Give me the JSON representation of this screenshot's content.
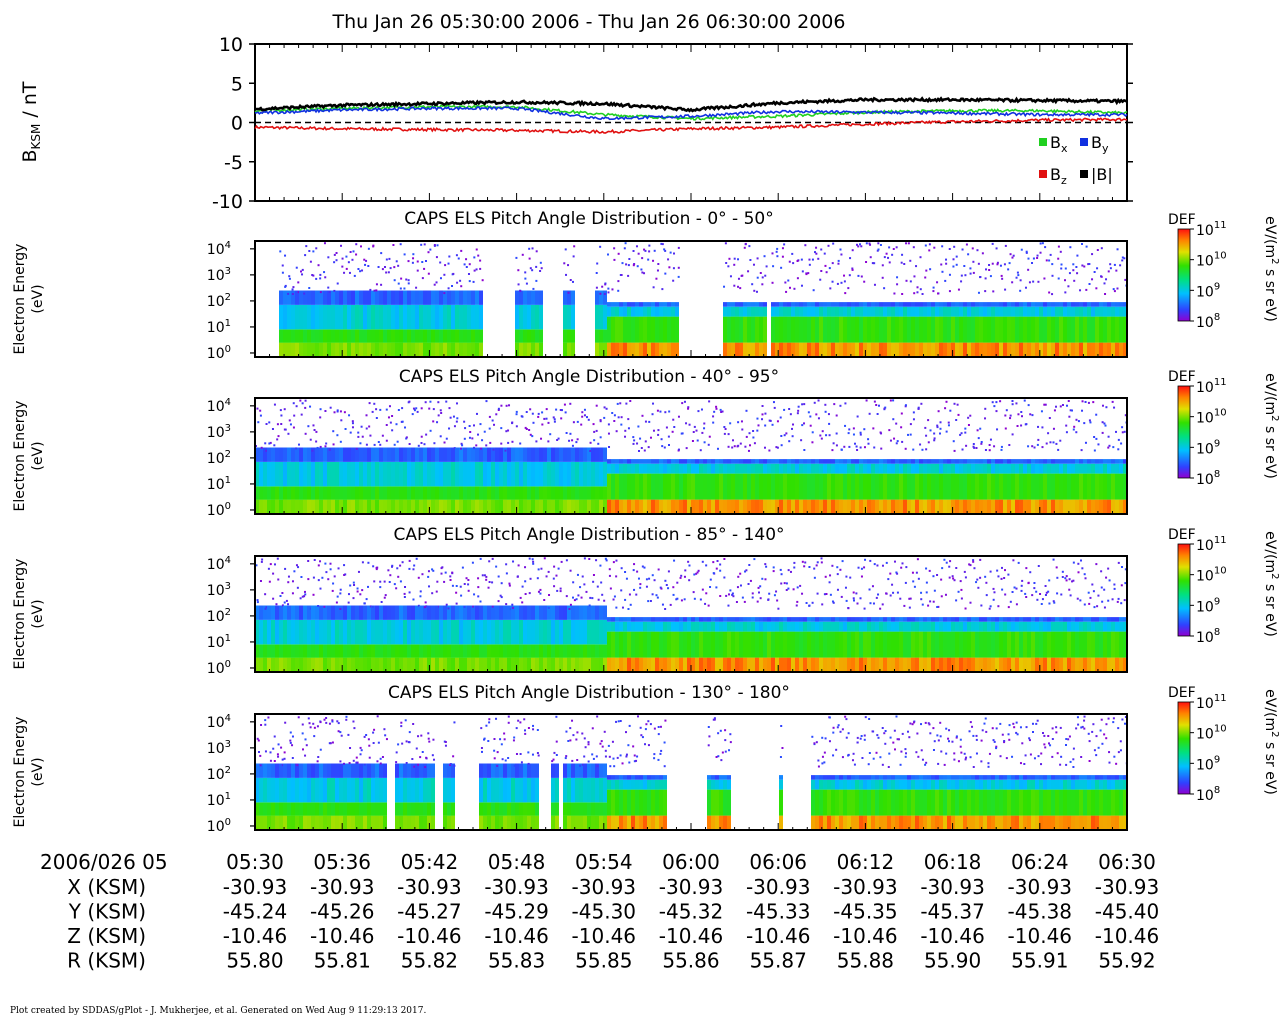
{
  "title": "Thu Jan 26 05:30:00 2006 - Thu Jan 26 06:30:00 2006",
  "footer": "Plot created by SDDAS/gPlot - J. Mukherjee, et al.  Generated on Wed Aug 9 11:29:13 2017.",
  "mag_panel": {
    "ylabel_main": "B",
    "ylabel_sub": "KSM",
    "ylabel_unit": " / nT",
    "yticks": [
      "10",
      "5",
      "0",
      "-5",
      "-10"
    ]
  },
  "colorbar": {
    "label": "DEF",
    "unit_main": "eV/(m",
    "unit_sup": "2",
    "unit_rest": " s sr eV)",
    "tick_base": "10",
    "tick_exps": [
      "11",
      "10",
      "9",
      "8"
    ]
  },
  "spectrogram_ylabel_1": "Electron Energy",
  "spectrogram_ylabel_2": "(eV)",
  "spectrogram_yticks": [
    {
      "base": "10",
      "exp": "4"
    },
    {
      "base": "10",
      "exp": "3"
    },
    {
      "base": "10",
      "exp": "2"
    },
    {
      "base": "10",
      "exp": "1"
    },
    {
      "base": "10",
      "exp": "0"
    }
  ],
  "ephemeris": {
    "date_label": "2006/026 05",
    "rows": [
      {
        "label": "X (KSM)",
        "values": [
          "-30.93",
          "-30.93",
          "-30.93",
          "-30.93",
          "-30.93",
          "-30.93",
          "-30.93",
          "-30.93",
          "-30.93",
          "-30.93",
          "-30.93"
        ]
      },
      {
        "label": "Y (KSM)",
        "values": [
          "-45.24",
          "-45.26",
          "-45.27",
          "-45.29",
          "-45.30",
          "-45.32",
          "-45.33",
          "-45.35",
          "-45.37",
          "-45.38",
          "-45.40"
        ]
      },
      {
        "label": "Z (KSM)",
        "values": [
          "-10.46",
          "-10.46",
          "-10.46",
          "-10.46",
          "-10.46",
          "-10.46",
          "-10.46",
          "-10.46",
          "-10.46",
          "-10.46",
          "-10.46"
        ]
      },
      {
        "label": "R (KSM)",
        "values": [
          "55.80",
          "55.81",
          "55.82",
          "55.83",
          "55.85",
          "55.86",
          "55.87",
          "55.88",
          "55.90",
          "55.91",
          "55.92"
        ]
      }
    ]
  },
  "chart_data": [
    {
      "type": "line",
      "x_unit": "UT",
      "x": [
        "05:30",
        "05:36",
        "05:42",
        "05:48",
        "05:54",
        "06:00",
        "06:06",
        "06:12",
        "06:18",
        "06:24",
        "06:30"
      ],
      "ylim": [
        -10,
        10
      ],
      "yticks": [
        10,
        5,
        0,
        -5,
        -10
      ],
      "zero_line": "dashed",
      "legend_placement": "bottom-right",
      "series": [
        {
          "name": "Bx",
          "label_main": "B",
          "label_sub": "x",
          "color": "#20d020",
          "values": [
            1.5,
            1.8,
            2.0,
            2.0,
            1.0,
            0.5,
            0.8,
            1.3,
            1.5,
            1.5,
            1.2
          ]
        },
        {
          "name": "By",
          "label_main": "B",
          "label_sub": "y",
          "color": "#1030e0",
          "values": [
            1.2,
            1.6,
            1.8,
            1.8,
            0.5,
            0.8,
            1.4,
            1.3,
            1.2,
            1.0,
            1.0
          ]
        },
        {
          "name": "Bz",
          "label_main": "B",
          "label_sub": "z",
          "color": "#e01010",
          "values": [
            -0.6,
            -0.8,
            -0.9,
            -1.0,
            -1.2,
            -0.8,
            -0.6,
            -0.2,
            0.1,
            0.3,
            0.4
          ]
        },
        {
          "name": "|B|",
          "label_main": "|B|",
          "label_sub": "",
          "color": "#000000",
          "values": [
            1.7,
            2.2,
            2.4,
            2.6,
            2.4,
            1.6,
            2.5,
            2.9,
            2.9,
            2.8,
            2.7
          ]
        }
      ]
    },
    {
      "type": "heatmap",
      "title": "CAPS ELS Pitch Angle Distribution - 0° - 50°",
      "z_label": "DEF",
      "z_range": [
        100000000.0,
        100000000000.0
      ],
      "y_range_eV": [
        0.7,
        20000
      ],
      "gaps_minutes": [
        [
          0,
          1.5
        ],
        [
          15.6,
          17.8
        ],
        [
          19.8,
          21.0
        ],
        [
          22.0,
          22.6
        ],
        [
          22.8,
          23.3
        ],
        [
          29.0,
          32.0
        ],
        [
          35.0,
          35.4
        ]
      ]
    },
    {
      "type": "heatmap",
      "title": "CAPS ELS Pitch Angle Distribution - 40° - 95°",
      "z_label": "DEF",
      "z_range": [
        100000000.0,
        100000000000.0
      ],
      "y_range_eV": [
        0.7,
        20000
      ],
      "gaps_minutes": []
    },
    {
      "type": "heatmap",
      "title": "CAPS ELS Pitch Angle Distribution - 85° - 140°",
      "z_label": "DEF",
      "z_range": [
        100000000.0,
        100000000000.0
      ],
      "y_range_eV": [
        0.7,
        20000
      ],
      "gaps_minutes": []
    },
    {
      "type": "heatmap",
      "title": "CAPS ELS Pitch Angle Distribution - 130° - 180°",
      "z_label": "DEF",
      "z_range": [
        100000000.0,
        100000000000.0
      ],
      "y_range_eV": [
        0.7,
        20000
      ],
      "gaps_minutes": [
        [
          9.0,
          9.5
        ],
        [
          12.2,
          12.4
        ],
        [
          12.6,
          12.8
        ],
        [
          13.7,
          15.2
        ],
        [
          19.5,
          20.2
        ],
        [
          20.8,
          21.0
        ],
        [
          28.3,
          31.0
        ],
        [
          32.5,
          36.0
        ],
        [
          36.1,
          38.2
        ]
      ]
    }
  ]
}
